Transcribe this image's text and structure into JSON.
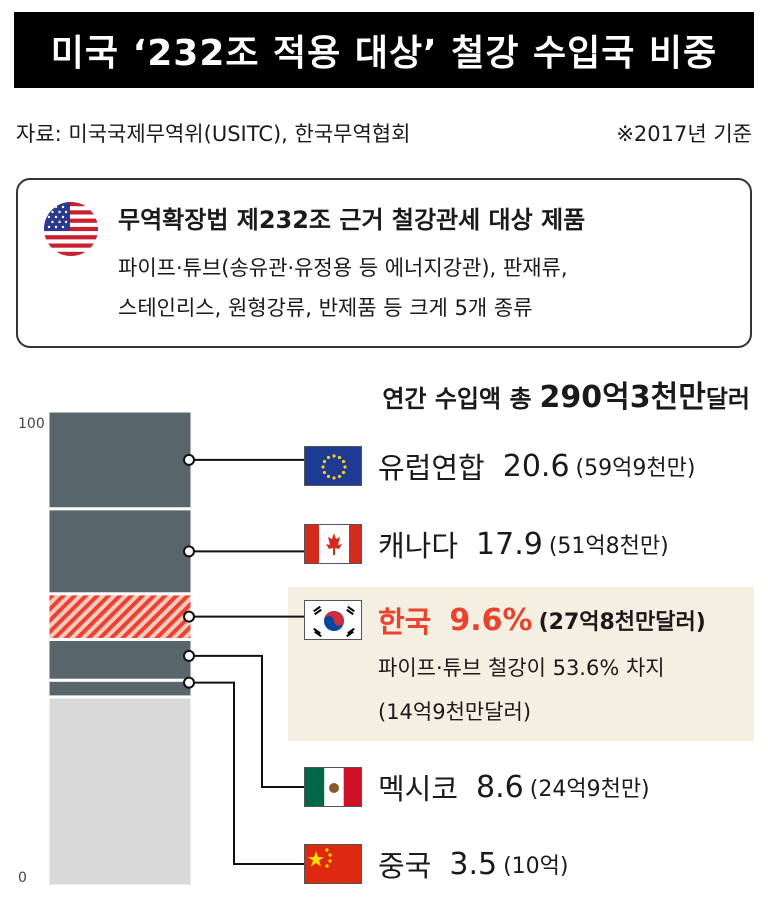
{
  "header": {
    "title": "미국 ‘232조 적용 대상’ 철강 수입국 비중",
    "source": "자료: 미국국제무역위(USITC), 한국무역협회",
    "basis": "※2017년 기준"
  },
  "info": {
    "title": "무역확장법 제232조 근거 철강관세 대상 제품",
    "line1": "파이프·튜브(송유관·유정용 등 에너지강관), 판재류,",
    "line2": "스테인리스, 원형강류, 반제품 등 크게 5개 종류"
  },
  "total": {
    "label": "연간 수입액 총",
    "value": "290억3천만",
    "unit": "달러"
  },
  "countries": [
    {
      "name": "유럽연합",
      "value_label": "20.6",
      "amount": "(59억9천만)"
    },
    {
      "name": "캐나다",
      "value_label": "17.9",
      "amount": "(51억8천만)"
    },
    {
      "name": "한국",
      "value_label": "9.6%",
      "amount": "(27억8천만달러)",
      "note1": "파이프·튜브 철강이 53.6% 차지",
      "note2": "(14억9천만달러)"
    },
    {
      "name": "멕시코",
      "value_label": "8.6",
      "amount": "(24억9천만)"
    },
    {
      "name": "중국",
      "value_label": "3.5",
      "amount": "(10억)"
    }
  ],
  "colors": {
    "segment": "#58656a",
    "highlight": "#e8432f",
    "other": "#d9d9d9",
    "highlight_bg": "#f5efe2"
  },
  "chart_data": {
    "type": "bar",
    "categories": [
      "유럽연합",
      "캐나다",
      "한국",
      "멕시코",
      "중국",
      "기타"
    ],
    "values": [
      20.6,
      17.9,
      9.6,
      8.6,
      3.5,
      39.8
    ],
    "ylim": [
      0,
      100
    ],
    "yticks": [
      "100",
      "0"
    ]
  }
}
